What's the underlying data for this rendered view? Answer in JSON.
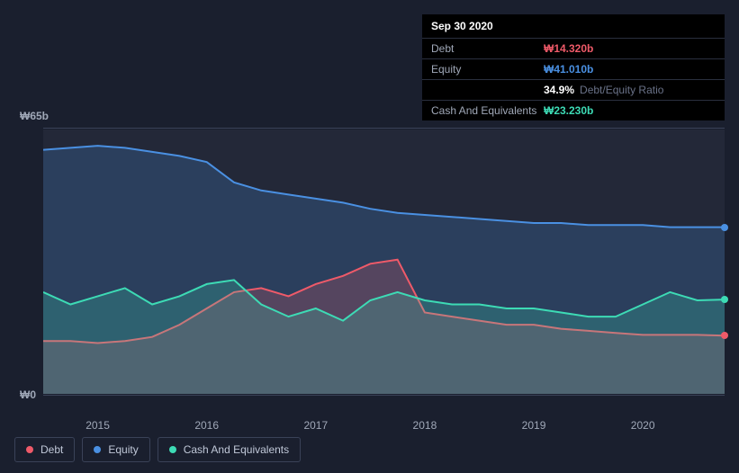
{
  "info": {
    "date": "Sep 30 2020",
    "rows": [
      {
        "label": "Debt",
        "value": "₩14.320b",
        "color": "#ef5a69"
      },
      {
        "label": "Equity",
        "value": "₩41.010b",
        "color": "#4a90e2"
      },
      {
        "label": "",
        "value": "34.9%",
        "subtext": "Debt/Equity Ratio",
        "color": "#ffffff"
      },
      {
        "label": "Cash And Equivalents",
        "value": "₩23.230b",
        "color": "#3ddbb5"
      }
    ]
  },
  "chart": {
    "type": "area",
    "background_color": "#232838",
    "page_bg": "#1a1f2e",
    "grid_color": "#3a4258",
    "y_max_label": "₩65b",
    "y_min_label": "₩0",
    "ylim": [
      0,
      65
    ],
    "xlim": [
      2014.5,
      2020.75
    ],
    "xticks": [
      "2015",
      "2016",
      "2017",
      "2018",
      "2019",
      "2020"
    ],
    "series": [
      {
        "name": "Equity",
        "color": "#4a90e2",
        "fill_opacity": 0.22,
        "line_width": 2,
        "data": [
          [
            2014.5,
            60
          ],
          [
            2014.75,
            60.5
          ],
          [
            2015.0,
            61
          ],
          [
            2015.25,
            60.5
          ],
          [
            2015.5,
            59.5
          ],
          [
            2015.75,
            58.5
          ],
          [
            2016.0,
            57
          ],
          [
            2016.25,
            52
          ],
          [
            2016.5,
            50
          ],
          [
            2016.75,
            49
          ],
          [
            2017.0,
            48
          ],
          [
            2017.25,
            47
          ],
          [
            2017.5,
            45.5
          ],
          [
            2017.75,
            44.5
          ],
          [
            2018.0,
            44
          ],
          [
            2018.25,
            43.5
          ],
          [
            2018.5,
            43
          ],
          [
            2018.75,
            42.5
          ],
          [
            2019.0,
            42
          ],
          [
            2019.25,
            42
          ],
          [
            2019.5,
            41.5
          ],
          [
            2019.75,
            41.5
          ],
          [
            2020.0,
            41.5
          ],
          [
            2020.25,
            41
          ],
          [
            2020.5,
            41
          ],
          [
            2020.75,
            41
          ]
        ],
        "end_dot": true
      },
      {
        "name": "Debt",
        "color": "#ef5a69",
        "fill_opacity": 0.22,
        "line_width": 2,
        "data": [
          [
            2014.5,
            13
          ],
          [
            2014.75,
            13
          ],
          [
            2015.0,
            12.5
          ],
          [
            2015.25,
            13
          ],
          [
            2015.5,
            14
          ],
          [
            2015.75,
            17
          ],
          [
            2016.0,
            21
          ],
          [
            2016.25,
            25
          ],
          [
            2016.5,
            26
          ],
          [
            2016.75,
            24
          ],
          [
            2017.0,
            27
          ],
          [
            2017.25,
            29
          ],
          [
            2017.5,
            32
          ],
          [
            2017.75,
            33
          ],
          [
            2018.0,
            20
          ],
          [
            2018.25,
            19
          ],
          [
            2018.5,
            18
          ],
          [
            2018.75,
            17
          ],
          [
            2019.0,
            17
          ],
          [
            2019.25,
            16
          ],
          [
            2019.5,
            15.5
          ],
          [
            2019.75,
            15
          ],
          [
            2020.0,
            14.5
          ],
          [
            2020.25,
            14.5
          ],
          [
            2020.5,
            14.5
          ],
          [
            2020.75,
            14.3
          ]
        ],
        "end_dot": true
      },
      {
        "name": "Cash And Equivalents",
        "color": "#3ddbb5",
        "fill_opacity": 0.22,
        "line_width": 2,
        "data": [
          [
            2014.5,
            25
          ],
          [
            2014.75,
            22
          ],
          [
            2015.0,
            24
          ],
          [
            2015.25,
            26
          ],
          [
            2015.5,
            22
          ],
          [
            2015.75,
            24
          ],
          [
            2016.0,
            27
          ],
          [
            2016.25,
            28
          ],
          [
            2016.5,
            22
          ],
          [
            2016.75,
            19
          ],
          [
            2017.0,
            21
          ],
          [
            2017.25,
            18
          ],
          [
            2017.5,
            23
          ],
          [
            2017.75,
            25
          ],
          [
            2018.0,
            23
          ],
          [
            2018.25,
            22
          ],
          [
            2018.5,
            22
          ],
          [
            2018.75,
            21
          ],
          [
            2019.0,
            21
          ],
          [
            2019.25,
            20
          ],
          [
            2019.5,
            19
          ],
          [
            2019.75,
            19
          ],
          [
            2020.0,
            22
          ],
          [
            2020.25,
            25
          ],
          [
            2020.5,
            23
          ],
          [
            2020.75,
            23.2
          ]
        ],
        "end_dot": true
      }
    ],
    "legend_items": [
      {
        "label": "Debt",
        "color": "#ef5a69"
      },
      {
        "label": "Equity",
        "color": "#4a90e2"
      },
      {
        "label": "Cash And Equivalents",
        "color": "#3ddbb5"
      }
    ]
  }
}
